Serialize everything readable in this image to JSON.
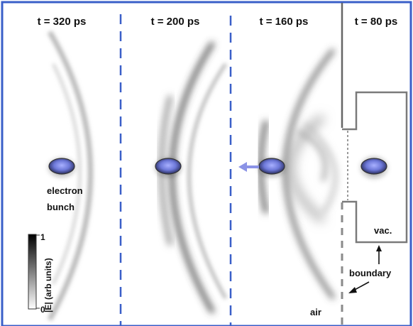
{
  "panels": [
    {
      "time_label": "t = 320 ps"
    },
    {
      "time_label": "t = 200 ps"
    },
    {
      "time_label": "t = 160 ps"
    },
    {
      "time_label": "t = 80 ps"
    }
  ],
  "labels": {
    "electron_line1": "electron",
    "electron_line2": "bunch",
    "vacuum": "vac.",
    "boundary": "boundary",
    "air": "air"
  },
  "colorbar": {
    "title": "|E| (arb units)",
    "max_label": "1",
    "min_label": "0"
  },
  "colors": {
    "frame": "#3a5fc8",
    "divider": "#3a5fc8",
    "bunch": "#6d78d8",
    "boundary_line": "#7a7a7a"
  }
}
